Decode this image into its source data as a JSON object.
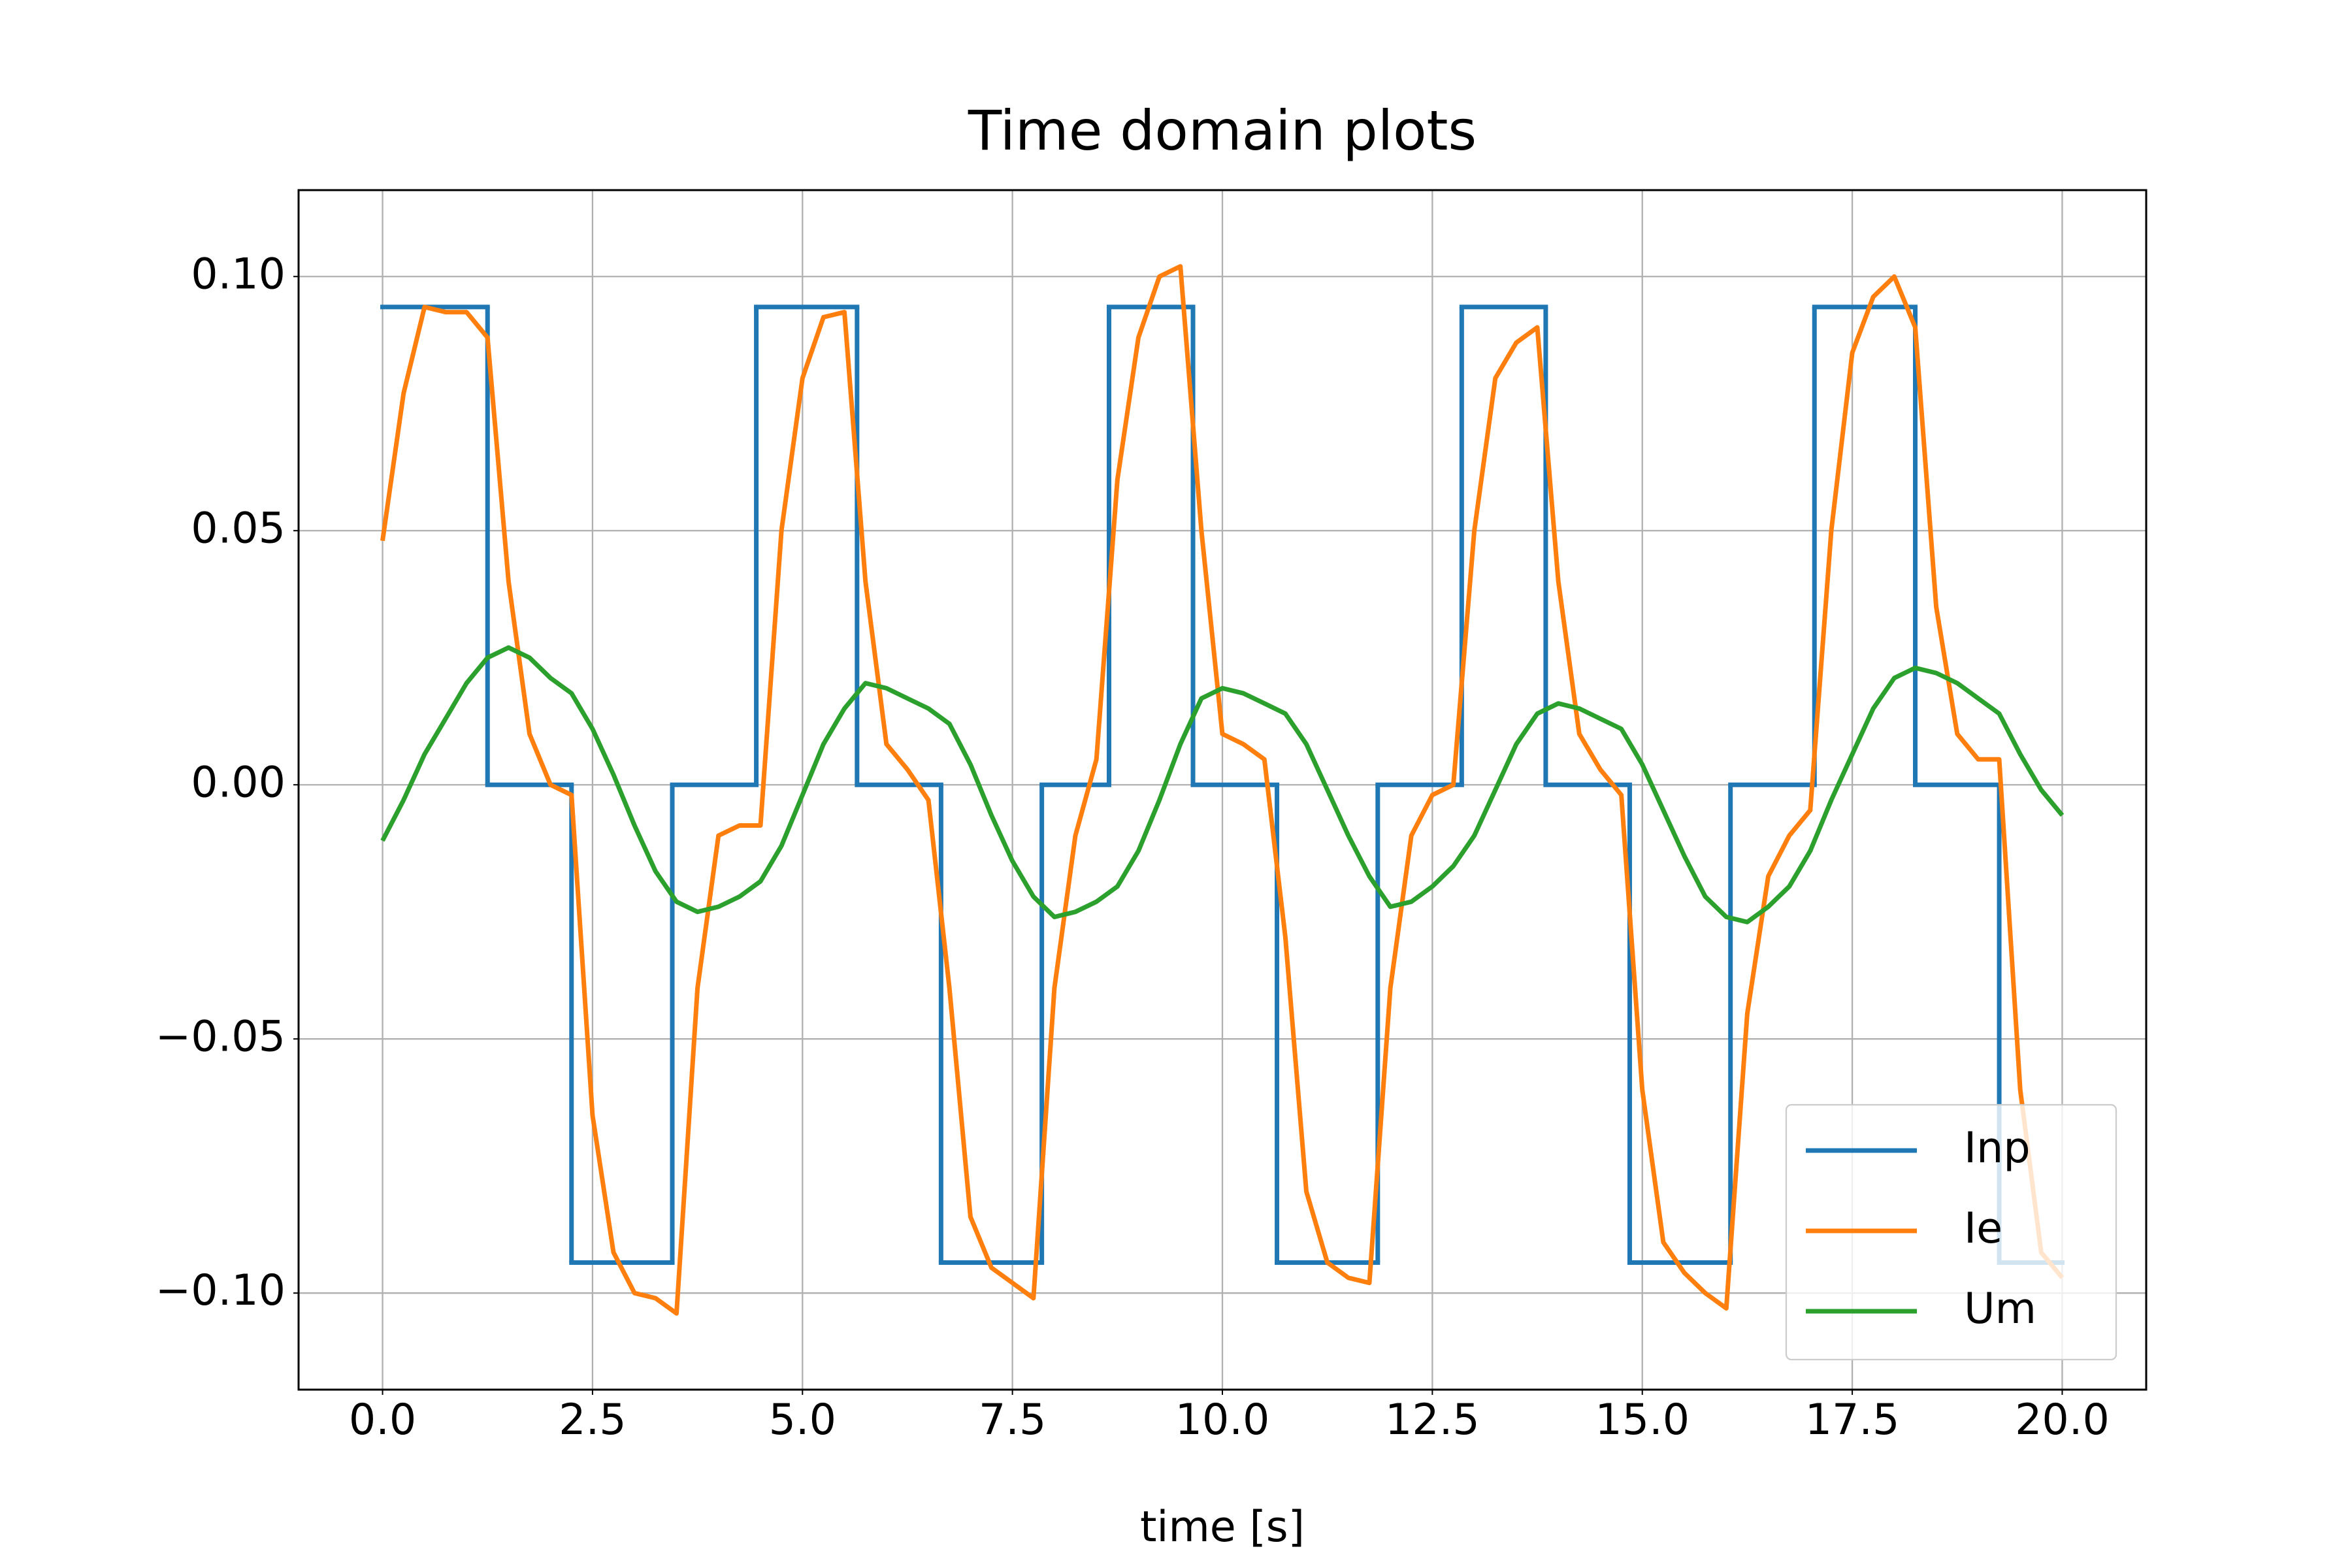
{
  "chart_data": {
    "type": "line",
    "title": "Time domain plots",
    "xlabel": "time [s]",
    "xlim": [
      -1,
      21
    ],
    "ylim": [
      -0.119,
      0.117
    ],
    "xticks": [
      {
        "value": 0,
        "label": "0.0"
      },
      2.5,
      {
        "value": 5,
        "label": "5.0"
      },
      7.5,
      {
        "value": 10,
        "label": "10.0"
      },
      12.5,
      {
        "value": 15,
        "label": "15.0"
      },
      17.5,
      {
        "value": 20,
        "label": "20.0"
      }
    ],
    "yticks": [
      {
        "value": -0.1,
        "label": "−0.10"
      },
      {
        "value": -0.05,
        "label": "−0.05"
      },
      {
        "value": 0,
        "label": "0.00"
      },
      {
        "value": 0.05,
        "label": "0.05"
      },
      {
        "value": 0.1,
        "label": "0.10"
      }
    ],
    "grid": true,
    "legend": "lower right",
    "x": [
      0,
      0.25,
      0.5,
      0.75,
      1,
      1.25,
      1.5,
      1.75,
      2,
      2.25,
      2.5,
      2.75,
      3,
      3.25,
      3.5,
      3.75,
      4,
      4.25,
      4.5,
      4.75,
      5,
      5.25,
      5.5,
      5.75,
      6,
      6.25,
      6.5,
      6.75,
      7,
      7.25,
      7.5,
      7.75,
      8,
      8.25,
      8.5,
      8.75,
      9,
      9.25,
      9.5,
      9.75,
      10,
      10.25,
      10.5,
      10.75,
      11,
      11.25,
      11.5,
      11.75,
      12,
      12.25,
      12.5,
      12.75,
      13,
      13.25,
      13.5,
      13.75,
      14,
      14.25,
      14.5,
      14.75,
      15,
      15.25,
      15.5,
      15.75,
      16,
      16.25,
      16.5,
      16.75,
      17,
      17.25,
      17.5,
      17.75,
      18,
      18.25,
      18.5,
      18.75,
      19,
      19.25,
      19.5,
      19.75,
      20
    ],
    "series": [
      {
        "name": "Inp",
        "color": "#1f77b4",
        "drawstyle": "steps-post",
        "x": [
          0,
          1.25,
          2.25,
          3.45,
          4.45,
          5.65,
          6.65,
          7.85,
          8.65,
          9.65,
          10.65,
          11.85,
          12.85,
          13.85,
          14.85,
          16.05,
          17.05,
          18.25,
          19.25,
          20
        ],
        "values": [
          0.094,
          0,
          -0.094,
          0,
          0.094,
          0,
          -0.094,
          0,
          0.094,
          0,
          -0.094,
          0,
          0.094,
          0,
          -0.094,
          0,
          0.094,
          0,
          -0.094,
          -0.094
        ]
      },
      {
        "name": "Ie",
        "color": "#ff7f0e",
        "values": [
          0.048,
          0.077,
          0.094,
          0.093,
          0.093,
          0.088,
          0.04,
          0.01,
          0.0,
          -0.002,
          -0.065,
          -0.092,
          -0.1,
          -0.101,
          -0.104,
          -0.04,
          -0.01,
          -0.008,
          -0.008,
          0.05,
          0.08,
          0.092,
          0.093,
          0.04,
          0.008,
          0.003,
          -0.003,
          -0.04,
          -0.085,
          -0.095,
          -0.098,
          -0.101,
          -0.04,
          -0.01,
          0.005,
          0.06,
          0.088,
          0.1,
          0.102,
          0.05,
          0.01,
          0.008,
          0.005,
          -0.03,
          -0.08,
          -0.094,
          -0.097,
          -0.098,
          -0.04,
          -0.01,
          -0.002,
          0.0,
          0.05,
          0.08,
          0.087,
          0.09,
          0.04,
          0.01,
          0.003,
          -0.002,
          -0.06,
          -0.09,
          -0.096,
          -0.1,
          -0.103,
          -0.045,
          -0.018,
          -0.01,
          -0.005,
          0.05,
          0.085,
          0.096,
          0.1,
          0.09,
          0.035,
          0.01,
          0.005,
          0.005,
          -0.06,
          -0.092,
          -0.097
        ]
      },
      {
        "name": "Um",
        "color": "#2ca02c",
        "values": [
          -0.011,
          -0.003,
          0.006,
          0.013,
          0.02,
          0.025,
          0.027,
          0.025,
          0.021,
          0.018,
          0.011,
          0.002,
          -0.008,
          -0.017,
          -0.023,
          -0.025,
          -0.024,
          -0.022,
          -0.019,
          -0.012,
          -0.002,
          0.008,
          0.015,
          0.02,
          0.019,
          0.017,
          0.015,
          0.012,
          0.004,
          -0.006,
          -0.015,
          -0.022,
          -0.026,
          -0.025,
          -0.023,
          -0.02,
          -0.013,
          -0.003,
          0.008,
          0.017,
          0.019,
          0.018,
          0.016,
          0.014,
          0.008,
          -0.001,
          -0.01,
          -0.018,
          -0.024,
          -0.023,
          -0.02,
          -0.016,
          -0.01,
          -0.001,
          0.008,
          0.014,
          0.016,
          0.015,
          0.013,
          0.011,
          0.004,
          -0.005,
          -0.014,
          -0.022,
          -0.026,
          -0.027,
          -0.024,
          -0.02,
          -0.013,
          -0.003,
          0.006,
          0.015,
          0.021,
          0.023,
          0.022,
          0.02,
          0.017,
          0.014,
          0.006,
          -0.001,
          -0.006
        ]
      }
    ]
  }
}
